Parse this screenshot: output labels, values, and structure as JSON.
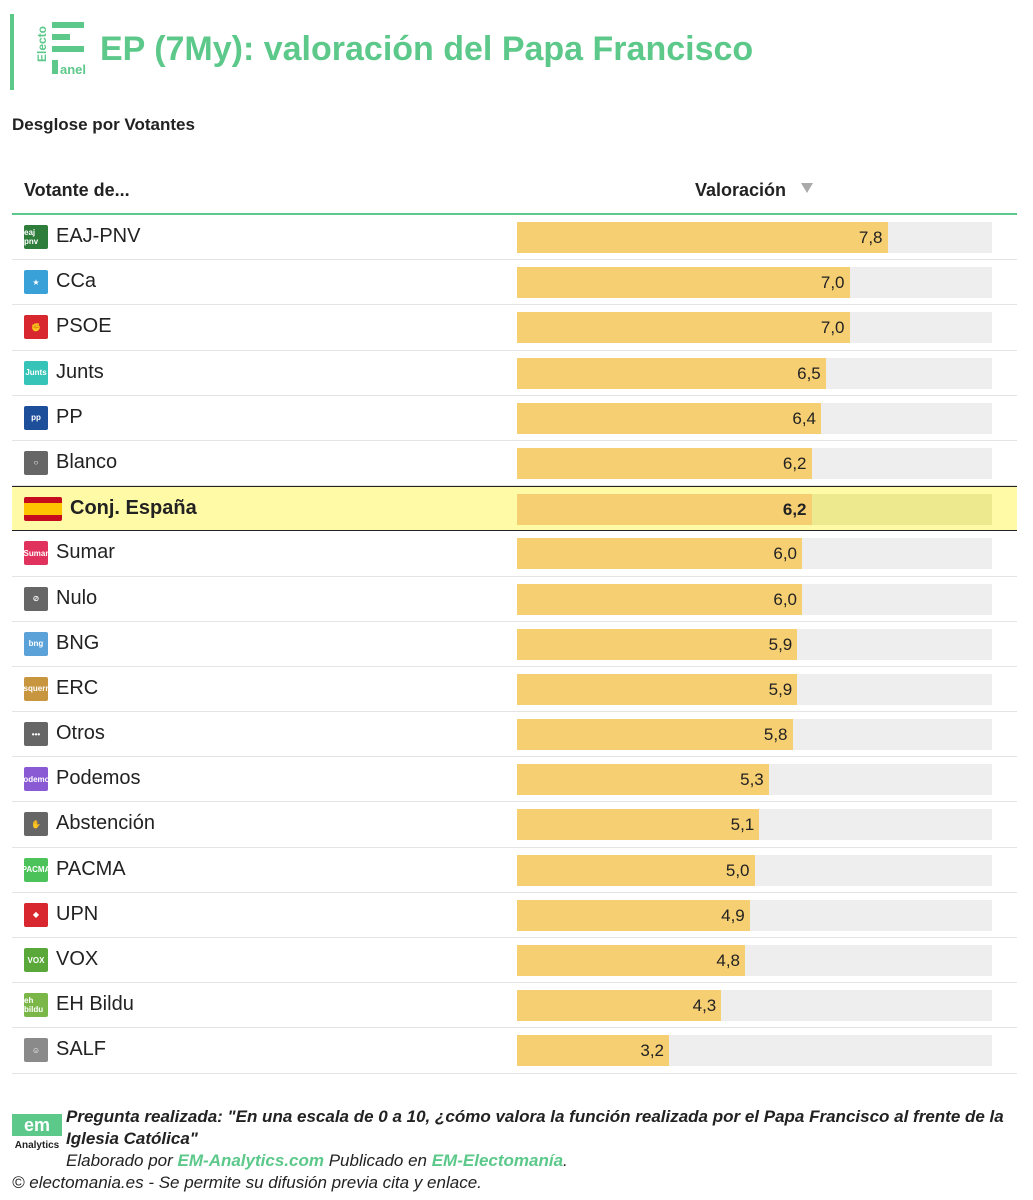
{
  "header": {
    "logo_text_top": "Electo",
    "logo_text_bottom": "anel",
    "title": "EP (7My): valoración del Papa Francisco"
  },
  "subtitle": "Desglose por Votantes",
  "columns": {
    "voter": "Votante de...",
    "rating": "Valoración"
  },
  "chart_data": {
    "type": "bar",
    "title": "EP (7My): valoración del Papa Francisco",
    "subtitle": "Desglose por Votantes",
    "xlabel": "Votante de...",
    "ylabel": "Valoración",
    "ylim": [
      0,
      10
    ],
    "orientation": "horizontal",
    "sorted": "descending",
    "highlight": "Conj. España",
    "bar_color": "#f6cf73",
    "track_color": "#eeeeee",
    "highlight_row_color": "#fffaa6",
    "categories": [
      "EAJ-PNV",
      "CCa",
      "PSOE",
      "Junts",
      "PP",
      "Blanco",
      "Conj. España",
      "Sumar",
      "Nulo",
      "BNG",
      "ERC",
      "Otros",
      "Podemos",
      "Abstención",
      "PACMA",
      "UPN",
      "VOX",
      "EH Bildu",
      "SALF"
    ],
    "values": [
      7.8,
      7.0,
      7.0,
      6.5,
      6.4,
      6.2,
      6.2,
      6.0,
      6.0,
      5.9,
      5.9,
      5.8,
      5.3,
      5.1,
      5.0,
      4.9,
      4.8,
      4.3,
      3.2
    ],
    "value_labels": [
      "7,8",
      "7,0",
      "7,0",
      "6,5",
      "6,4",
      "6,2",
      "6,2",
      "6,0",
      "6,0",
      "5,9",
      "5,9",
      "5,8",
      "5,3",
      "5,1",
      "5,0",
      "4,9",
      "4,8",
      "4,3",
      "3,2"
    ],
    "icons": [
      {
        "name": "eaj-pnv-logo-icon",
        "color": "#2e7d3a",
        "text": "eaj pnv"
      },
      {
        "name": "cca-logo-icon",
        "color": "#3aa0d8",
        "text": "★"
      },
      {
        "name": "psoe-logo-icon",
        "color": "#d8272e",
        "text": "✊"
      },
      {
        "name": "junts-logo-icon",
        "color": "#36c4b8",
        "text": "Junts"
      },
      {
        "name": "pp-logo-icon",
        "color": "#1d4e9a",
        "text": "pp"
      },
      {
        "name": "blank-vote-icon",
        "color": "#666666",
        "text": "○"
      },
      {
        "name": "spain-flag-icon",
        "color": "#c60b1e",
        "text": ""
      },
      {
        "name": "sumar-logo-icon",
        "color": "#e0325c",
        "text": "Sumar"
      },
      {
        "name": "null-vote-icon",
        "color": "#666666",
        "text": "⊘"
      },
      {
        "name": "bng-logo-icon",
        "color": "#5aa2d8",
        "text": "bng"
      },
      {
        "name": "erc-logo-icon",
        "color": "#c8963e",
        "text": "esquerra"
      },
      {
        "name": "others-icon",
        "color": "#666666",
        "text": "•••"
      },
      {
        "name": "podemos-logo-icon",
        "color": "#8a5ad4",
        "text": "Podemos"
      },
      {
        "name": "abstention-icon",
        "color": "#666666",
        "text": "✋"
      },
      {
        "name": "pacma-logo-icon",
        "color": "#4cc25a",
        "text": "PACMA"
      },
      {
        "name": "upn-logo-icon",
        "color": "#d8272e",
        "text": "◆"
      },
      {
        "name": "vox-logo-icon",
        "color": "#5aa83a",
        "text": "VOX"
      },
      {
        "name": "eh-bildu-logo-icon",
        "color": "#7ab648",
        "text": "eh bildu"
      },
      {
        "name": "salf-logo-icon",
        "color": "#8a8a8a",
        "text": "☺"
      }
    ]
  },
  "footer": {
    "logo_top": "em",
    "logo_bottom": "Analytics",
    "question": "Pregunta realizada: \"En una escala de 0 a 10, ¿cómo valora la función realizada por el Papa Francisco al frente de la Iglesia Católica\"",
    "credit_prefix": "Elaborado por ",
    "credit_link1": "EM-Analytics.com",
    "credit_mid": " Publicado en ",
    "credit_link2": "EM-Electomanía",
    "credit_suffix": ".",
    "copyright": "© electomania.es - Se permite su difusión previa cita y enlace."
  }
}
